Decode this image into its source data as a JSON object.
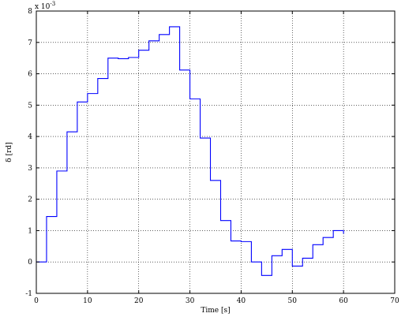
{
  "chart_data": {
    "type": "line",
    "drawstyle": "steps-post",
    "title": "",
    "xlabel": "Time [s]",
    "ylabel": "δ [rd]",
    "y_exponent_label": "x 10",
    "y_exponent_power": "-3",
    "xlim": [
      0,
      70
    ],
    "ylim": [
      -1,
      8
    ],
    "xticks": [
      0,
      10,
      20,
      30,
      40,
      50,
      60,
      70
    ],
    "yticks": [
      -1,
      0,
      1,
      2,
      3,
      4,
      5,
      6,
      7,
      8
    ],
    "grid": true,
    "legend": "none",
    "series": [
      {
        "color": "#0000ff",
        "x": [
          0,
          2,
          4,
          6,
          8,
          10,
          12,
          14,
          16,
          18,
          20,
          22,
          24,
          26,
          28,
          30,
          32,
          34,
          36,
          38,
          40,
          42,
          44,
          46,
          48,
          50,
          52,
          54,
          56,
          58,
          60
        ],
        "y": [
          0.0,
          1.45,
          2.9,
          4.15,
          5.1,
          5.37,
          5.85,
          6.5,
          6.48,
          6.52,
          6.75,
          7.05,
          7.25,
          7.5,
          6.12,
          5.2,
          3.95,
          2.6,
          1.32,
          0.67,
          0.65,
          0.0,
          -0.43,
          0.2,
          0.4,
          -0.13,
          0.12,
          0.55,
          0.78,
          1.0,
          0.9
        ]
      }
    ]
  }
}
